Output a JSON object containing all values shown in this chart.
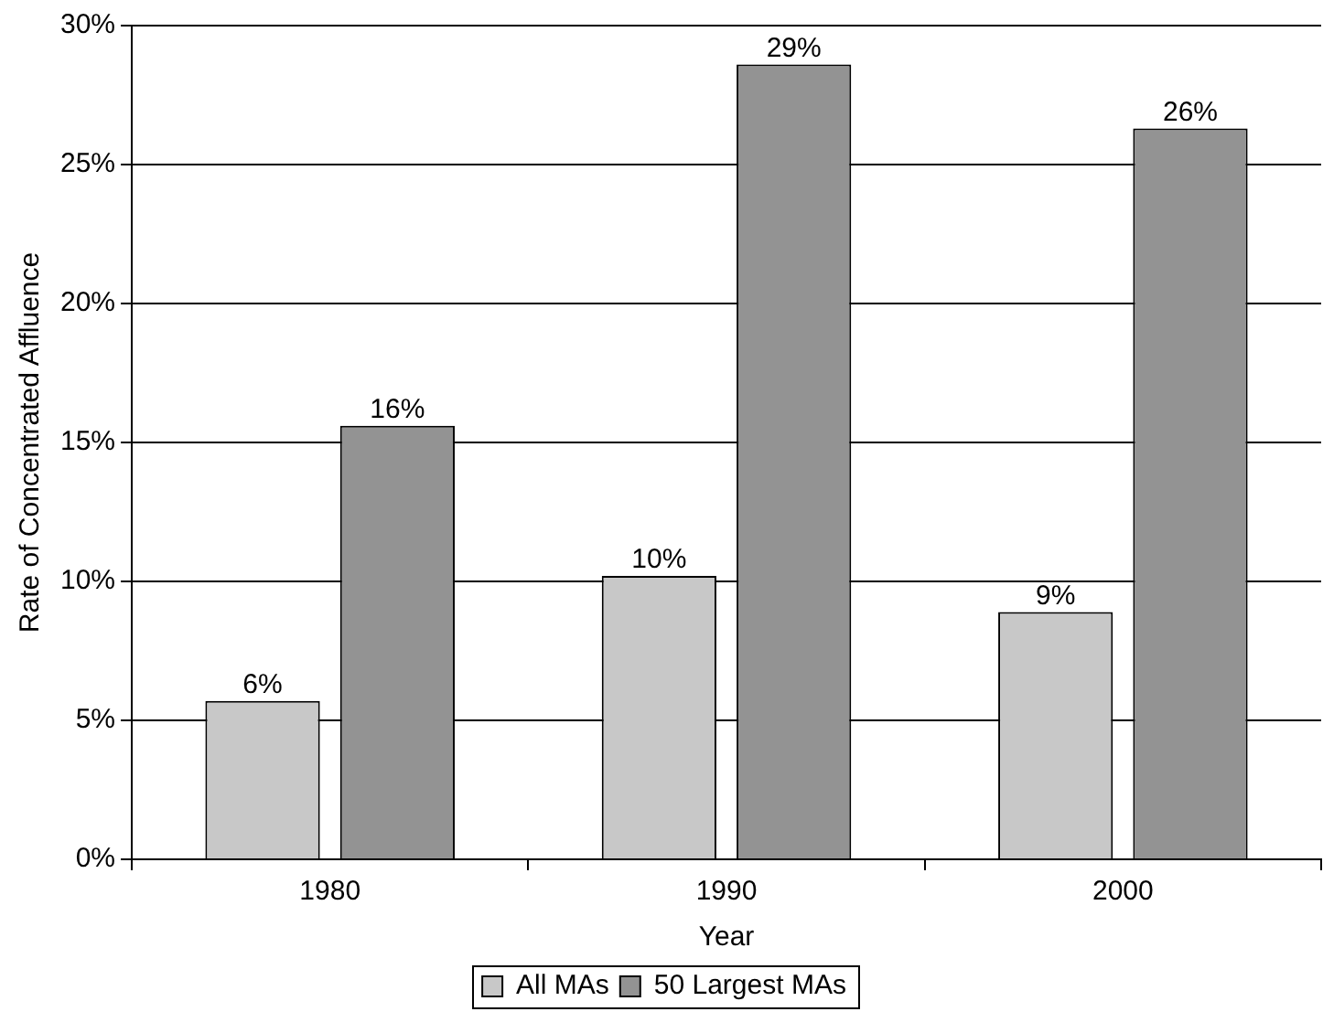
{
  "chart_data": {
    "type": "bar",
    "xlabel": "Year",
    "ylabel": "Rate of Concentrated Affluence",
    "categories": [
      "1980",
      "1990",
      "2000"
    ],
    "series": [
      {
        "name": "All MAs",
        "color": "#c8c8c8",
        "values": [
          5.7,
          10.2,
          8.9
        ],
        "value_labels": [
          "6%",
          "10%",
          "9%"
        ]
      },
      {
        "name": "50 Largest MAs",
        "color": "#939393",
        "values": [
          15.6,
          28.6,
          26.3
        ],
        "value_labels": [
          "16%",
          "29%",
          "26%"
        ]
      }
    ],
    "ylim": [
      0,
      30
    ],
    "yticks": [
      {
        "value": 0,
        "label": "0%"
      },
      {
        "value": 5,
        "label": "5%"
      },
      {
        "value": 10,
        "label": "10%"
      },
      {
        "value": 15,
        "label": "15%"
      },
      {
        "value": 20,
        "label": "20%"
      },
      {
        "value": 25,
        "label": "25%"
      },
      {
        "value": 30,
        "label": "30%"
      }
    ],
    "grid": "y",
    "legend": "bottom"
  }
}
